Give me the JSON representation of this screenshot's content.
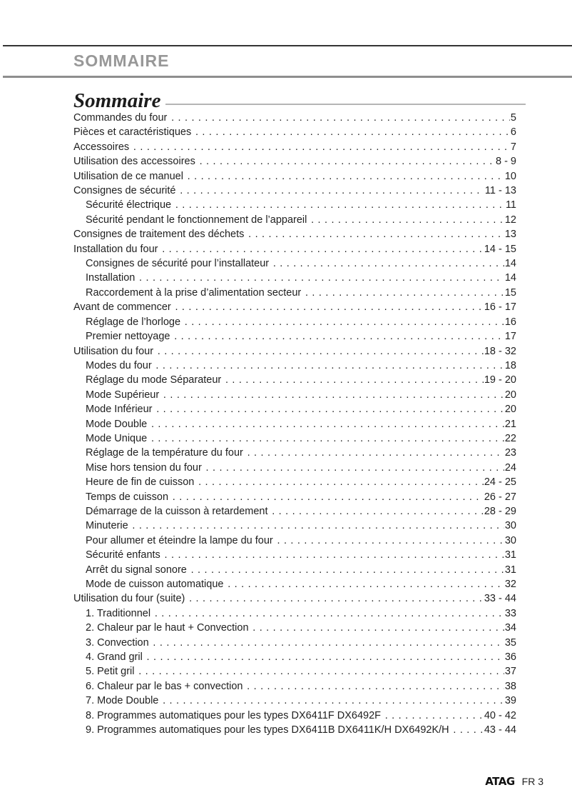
{
  "page_header": {
    "title": "SOMMAIRE"
  },
  "toc": {
    "title": "Sommaire",
    "entries": [
      {
        "label": "Commandes du four",
        "page": "5",
        "indent": 0
      },
      {
        "label": "Pièces et caractéristiques",
        "page": "6",
        "indent": 0
      },
      {
        "label": "Accessoires",
        "page": "7",
        "indent": 0
      },
      {
        "label": "Utilisation des accessoires",
        "page": "8 - 9",
        "indent": 0
      },
      {
        "label": "Utilisation de ce manuel",
        "page": "10",
        "indent": 0
      },
      {
        "label": "Consignes de sécurité",
        "page": "11 - 13",
        "indent": 0
      },
      {
        "label": "Sécurité électrique",
        "page": "11",
        "indent": 1
      },
      {
        "label": "Sécurité pendant le fonctionnement de l’appareil",
        "page": "12",
        "indent": 1
      },
      {
        "label": "Consignes de traitement des déchets",
        "page": "13",
        "indent": 0
      },
      {
        "label": "Installation du four",
        "page": "14 - 15",
        "indent": 0
      },
      {
        "label": "Consignes de sécurité pour l’installateur",
        "page": "14",
        "indent": 1
      },
      {
        "label": "Installation",
        "page": "14",
        "indent": 1
      },
      {
        "label": "Raccordement à la prise d’alimentation secteur",
        "page": "15",
        "indent": 1
      },
      {
        "label": "Avant de commencer",
        "page": "16 - 17",
        "indent": 0
      },
      {
        "label": "Réglage de l’horloge",
        "page": "16",
        "indent": 1
      },
      {
        "label": "Premier nettoyage",
        "page": "17",
        "indent": 1
      },
      {
        "label": "Utilisation du four",
        "page": "18 - 32",
        "indent": 0
      },
      {
        "label": "Modes du four",
        "page": "18",
        "indent": 1
      },
      {
        "label": "Réglage du mode Séparateur",
        "page": "19 - 20",
        "indent": 1
      },
      {
        "label": "Mode Supérieur",
        "page": "20",
        "indent": 1
      },
      {
        "label": "Mode Inférieur",
        "page": "20",
        "indent": 1
      },
      {
        "label": "Mode Double",
        "page": "21",
        "indent": 1
      },
      {
        "label": "Mode Unique",
        "page": "22",
        "indent": 1
      },
      {
        "label": "Réglage de la température du four",
        "page": "23",
        "indent": 1
      },
      {
        "label": "Mise hors tension du four",
        "page": "24",
        "indent": 1
      },
      {
        "label": "Heure de fin de cuisson",
        "page": "24 - 25",
        "indent": 1
      },
      {
        "label": "Temps de cuisson",
        "page": "26 - 27",
        "indent": 1
      },
      {
        "label": "Démarrage de la cuisson à retardement",
        "page": "28 - 29",
        "indent": 1
      },
      {
        "label": "Minuterie",
        "page": "30",
        "indent": 1
      },
      {
        "label": "Pour allumer et éteindre la lampe du four",
        "page": "30",
        "indent": 1
      },
      {
        "label": "Sécurité enfants",
        "page": "31",
        "indent": 1
      },
      {
        "label": "Arrêt du signal sonore",
        "page": "31",
        "indent": 1
      },
      {
        "label": "Mode de cuisson automatique",
        "page": "32",
        "indent": 1
      },
      {
        "label": "Utilisation du four (suite)",
        "page": "33 - 44",
        "indent": 0
      },
      {
        "label": "1. Traditionnel",
        "page": "33",
        "indent": 1
      },
      {
        "label": "2. Chaleur par le haut + Convection",
        "page": "34",
        "indent": 1
      },
      {
        "label": "3. Convection",
        "page": "35",
        "indent": 1
      },
      {
        "label": "4. Grand gril",
        "page": "36",
        "indent": 1
      },
      {
        "label": "5. Petit gril",
        "page": "37",
        "indent": 1
      },
      {
        "label": "6. Chaleur par le bas + convection",
        "page": "38",
        "indent": 1
      },
      {
        "label": "7. Mode Double",
        "page": "39",
        "indent": 1
      },
      {
        "label": "8. Programmes automatiques pour les types DX6411F DX6492F",
        "page": "40 - 42",
        "indent": 1
      },
      {
        "label": "9. Programmes automatiques pour les types DX6411B DX6411K/H DX6492K/H",
        "page": "43 - 44",
        "indent": 1
      }
    ]
  },
  "footer": {
    "brand": "ATAG",
    "page_label": "FR 3"
  }
}
